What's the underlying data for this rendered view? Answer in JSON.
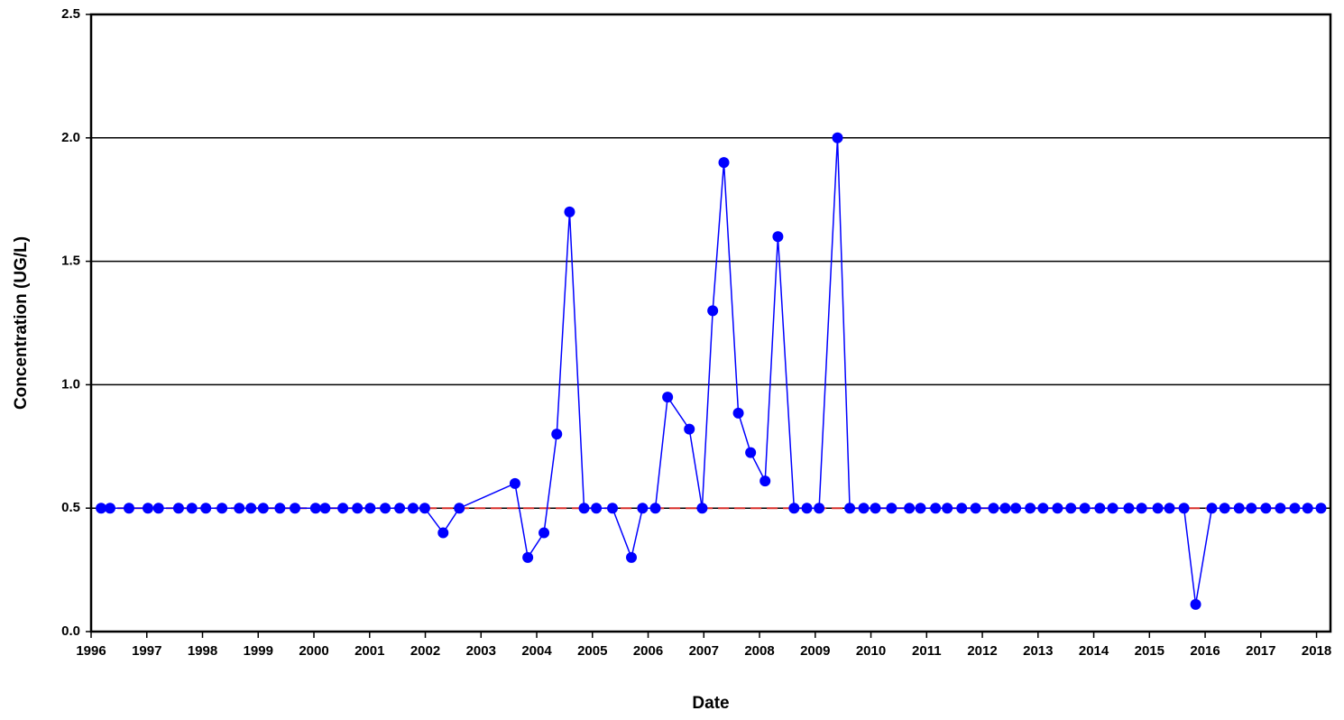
{
  "chart_data": {
    "type": "line",
    "x_label": "Date",
    "y_label": "Concentration (UG/L)",
    "xlim": [
      1996,
      2018.25
    ],
    "xticks": [
      1996,
      1997,
      1998,
      1999,
      2000,
      2001,
      2002,
      2003,
      2004,
      2005,
      2006,
      2007,
      2008,
      2009,
      2010,
      2011,
      2012,
      2013,
      2014,
      2015,
      2016,
      2017,
      2018
    ],
    "ylim": [
      0,
      2.5
    ],
    "yticks": [
      {
        "value": 0,
        "label": "0.0"
      },
      {
        "value": 0.5,
        "label": "0.5"
      },
      {
        "value": 1,
        "label": "1.0"
      },
      {
        "value": 1.5,
        "label": "1.5"
      },
      {
        "value": 2,
        "label": "2.0"
      },
      {
        "value": 2.5,
        "label": "2.5"
      }
    ],
    "grid": true,
    "reference_line": 0.5,
    "reference_color": "#d9302c",
    "x": [
      1996.18,
      1996.34,
      1996.68,
      1997.02,
      1997.21,
      1997.57,
      1997.81,
      1998.06,
      1998.35,
      1998.66,
      1998.87,
      1999.09,
      1999.39,
      1999.66,
      2000.03,
      2000.2,
      2000.52,
      2000.78,
      2001.01,
      2001.28,
      2001.54,
      2001.78,
      2001.99,
      2002.32,
      2002.61,
      2003.61,
      2003.84,
      2004.13,
      2004.36,
      2004.59,
      2004.85,
      2005.07,
      2005.36,
      2005.7,
      2005.9,
      2006.13,
      2006.35,
      2006.74,
      2006.97,
      2007.16,
      2007.36,
      2007.62,
      2007.84,
      2008.1,
      2008.33,
      2008.62,
      2008.85,
      2009.07,
      2009.4,
      2009.62,
      2009.87,
      2010.08,
      2010.37,
      2010.69,
      2010.89,
      2011.16,
      2011.37,
      2011.63,
      2011.88,
      2012.2,
      2012.41,
      2012.6,
      2012.86,
      2013.09,
      2013.35,
      2013.59,
      2013.84,
      2014.11,
      2014.34,
      2014.63,
      2014.86,
      2015.15,
      2015.36,
      2015.62,
      2015.83,
      2016.12,
      2016.35,
      2016.61,
      2016.83,
      2017.09,
      2017.35,
      2017.61,
      2017.84,
      2018.08
    ],
    "series": [
      {
        "color": "#0000ff",
        "values": [
          0.5,
          0.5,
          0.5,
          0.5,
          0.5,
          0.5,
          0.5,
          0.5,
          0.5,
          0.5,
          0.5,
          0.5,
          0.5,
          0.5,
          0.5,
          0.5,
          0.5,
          0.5,
          0.5,
          0.5,
          0.5,
          0.5,
          0.5,
          0.4,
          0.5,
          0.6,
          0.3,
          0.4,
          0.8,
          1.7,
          0.5,
          0.5,
          0.5,
          0.3,
          0.5,
          0.5,
          0.95,
          0.82,
          0.5,
          1.3,
          1.9,
          0.885,
          0.725,
          0.61,
          1.6,
          0.5,
          0.5,
          0.5,
          2.0,
          0.5,
          0.5,
          0.5,
          0.5,
          0.5,
          0.5,
          0.5,
          0.5,
          0.5,
          0.5,
          0.5,
          0.5,
          0.5,
          0.5,
          0.5,
          0.5,
          0.5,
          0.5,
          0.5,
          0.5,
          0.5,
          0.5,
          0.5,
          0.5,
          0.5,
          0.11,
          0.5,
          0.5,
          0.5,
          0.5,
          0.5,
          0.5,
          0.5,
          0.5,
          0.5
        ]
      }
    ]
  }
}
